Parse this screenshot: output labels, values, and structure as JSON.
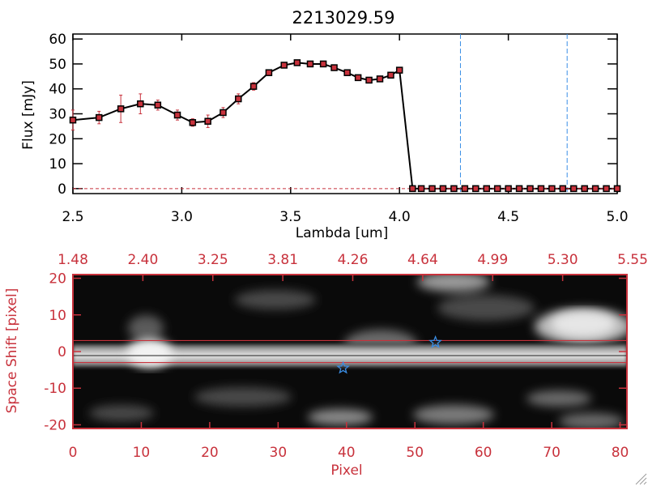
{
  "chart_data": [
    {
      "type": "line",
      "title": "2213029.59",
      "xlabel": "Lambda [um]",
      "ylabel": "Flux [mJy]",
      "xlim": [
        2.5,
        5.0
      ],
      "ylim": [
        -2,
        62
      ],
      "xticks": [
        "2.5",
        "3.0",
        "3.5",
        "4.0",
        "4.5",
        "5.0"
      ],
      "yticks": [
        "0",
        "10",
        "20",
        "30",
        "40",
        "50",
        "60"
      ],
      "x": [
        2.5,
        2.62,
        2.72,
        2.81,
        2.89,
        2.98,
        3.05,
        3.12,
        3.19,
        3.26,
        3.33,
        3.4,
        3.47,
        3.53,
        3.59,
        3.65,
        3.7,
        3.76,
        3.81,
        3.86,
        3.91,
        3.96,
        4.0,
        4.06,
        4.1,
        4.15,
        4.2,
        4.25,
        4.3,
        4.35,
        4.4,
        4.45,
        4.5,
        4.55,
        4.6,
        4.65,
        4.7,
        4.75,
        4.8,
        4.85,
        4.9,
        4.95,
        5.0
      ],
      "y": [
        27.5,
        28.5,
        32,
        34,
        33.5,
        29.5,
        26.5,
        27,
        30.5,
        36,
        41,
        46.5,
        49.5,
        50.5,
        50,
        50,
        48.5,
        46.5,
        44.5,
        43.5,
        44,
        45.5,
        47.5,
        0,
        0,
        0,
        0,
        0,
        0,
        0,
        0,
        0,
        0,
        0,
        0,
        0,
        0,
        0,
        0,
        0,
        0,
        0,
        0
      ],
      "yerr": [
        4,
        2.5,
        5.5,
        4,
        2,
        2,
        1.5,
        2.5,
        2,
        2,
        1.5,
        1,
        1,
        0.8,
        0.8,
        0.8,
        0.8,
        0.8,
        0.8,
        0.8,
        0.8,
        0.8,
        0.8,
        0,
        0,
        0,
        0,
        0,
        0,
        0,
        0,
        0,
        0,
        0,
        0,
        0,
        0,
        0,
        0,
        0,
        0,
        0,
        0
      ],
      "vlines": [
        4.28,
        4.77
      ],
      "colors": {
        "line": "#000000",
        "marker": "#c8323c",
        "error": "#c8323c",
        "vline": "#3a8ee6"
      }
    },
    {
      "type": "heatmap",
      "xlabel": "Pixel",
      "ylabel": "Space Shift [pixel]",
      "xlim": [
        0,
        81
      ],
      "ylim": [
        -21,
        21
      ],
      "xticks": [
        "0",
        "10",
        "20",
        "30",
        "40",
        "50",
        "60",
        "70",
        "80"
      ],
      "yticks": [
        "-20",
        "-10",
        "0",
        "10",
        "20"
      ],
      "top_axis_ticks": [
        "1.48",
        "2.40",
        "3.25",
        "3.81",
        "4.26",
        "4.64",
        "4.99",
        "5.30",
        "5.55"
      ],
      "aperture_lines": [
        3,
        -3
      ],
      "stars": [
        {
          "x": 39.5,
          "y": -4.5
        },
        {
          "x": 53,
          "y": 2.5
        }
      ],
      "colors": {
        "axis": "#c8323c",
        "star": "#3a8ee6"
      }
    }
  ]
}
